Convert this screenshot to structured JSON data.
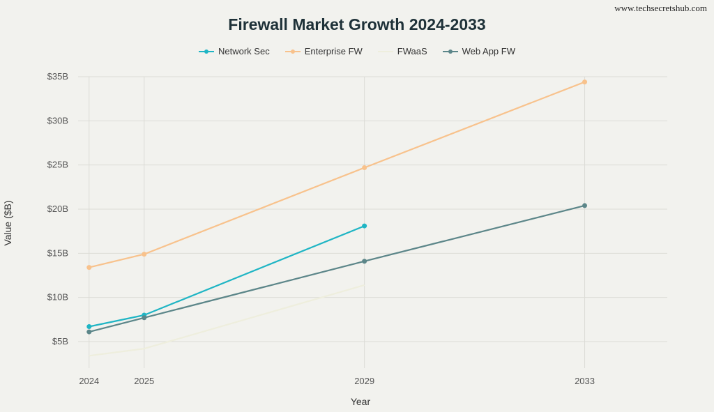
{
  "watermark": "www.techsecretshub.com",
  "chart_data": {
    "type": "line",
    "title": "Firewall Market Growth 2024-2033",
    "xlabel": "Year",
    "ylabel": "Value ($B)",
    "x_ticks": [
      "2024",
      "2025",
      "2029",
      "2033"
    ],
    "y_ticks": [
      "$5B",
      "$10B",
      "$15B",
      "$20B",
      "$25B",
      "$30B",
      "$35B"
    ],
    "ylim": [
      2,
      35
    ],
    "xlim": [
      2023.8,
      2034.5
    ],
    "grid": true,
    "legend_position": "top-center",
    "series": [
      {
        "name": "Network Sec",
        "color": "#1fb5c4",
        "markers": true,
        "points": [
          [
            2024,
            6.7
          ],
          [
            2025,
            8.0
          ],
          [
            2029,
            18.1
          ]
        ]
      },
      {
        "name": "Enterprise FW",
        "color": "#f8c28c",
        "markers": true,
        "points": [
          [
            2024,
            13.4
          ],
          [
            2025,
            14.9
          ],
          [
            2029,
            24.7
          ],
          [
            2033,
            34.4
          ]
        ]
      },
      {
        "name": "FWaaS",
        "color": "#eeeedd",
        "markers": false,
        "points": [
          [
            2024,
            3.4
          ],
          [
            2025,
            4.2
          ],
          [
            2029,
            11.4
          ]
        ]
      },
      {
        "name": "Web App FW",
        "color": "#5c8689",
        "markers": true,
        "points": [
          [
            2024,
            6.1
          ],
          [
            2025,
            7.7
          ],
          [
            2029,
            14.1
          ],
          [
            2033,
            20.4
          ]
        ]
      }
    ]
  }
}
